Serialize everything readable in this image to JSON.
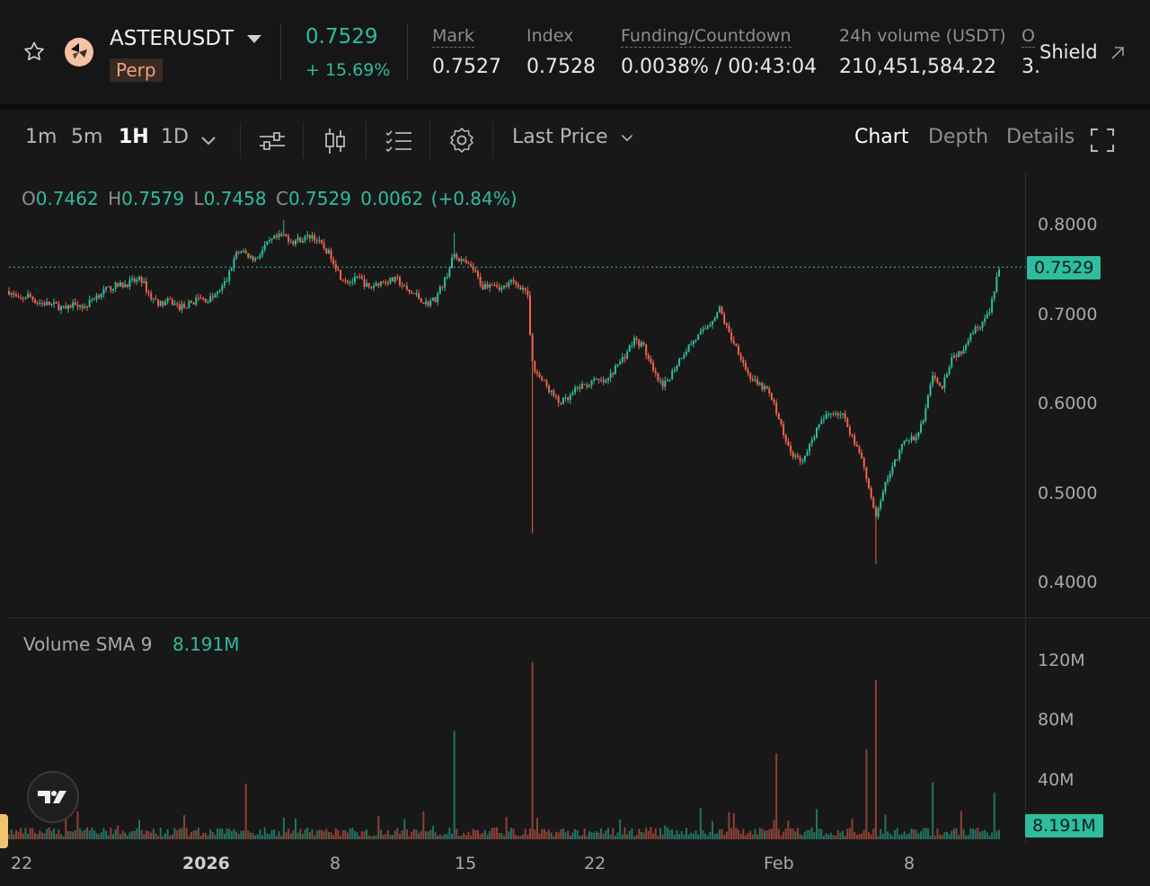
{
  "header": {
    "symbol": "ASTERUSDT",
    "contract_type": "Perp",
    "last_price": "0.7529",
    "change_pct": "+ 15.69%",
    "mark_label": "Mark",
    "mark_value": "0.7527",
    "index_label": "Index",
    "index_value": "0.7528",
    "funding_label": "Funding/Countdown",
    "funding_value": "0.0038% / 00:43:04",
    "volume_label": "24h volume (USDT)",
    "volume_value": "210,451,584.22",
    "oi_label": "O",
    "oi_value": "3.",
    "shield_label": "Shield",
    "icons": [
      "star-icon",
      "coin-logo-icon",
      "caret-down-icon",
      "arrow-up-right-icon"
    ]
  },
  "toolbar": {
    "intervals": [
      "1m",
      "5m",
      "1H",
      "1D"
    ],
    "active_interval": "1H",
    "price_type": "Last Price",
    "views": [
      "Chart",
      "Depth",
      "Details"
    ],
    "active_view": "Chart",
    "icons": [
      "chevron-down-icon",
      "indicators-icon",
      "candle-type-icon",
      "list-icon",
      "settings-icon",
      "fullscreen-icon"
    ]
  },
  "ohlc": {
    "o_label": "O",
    "o": "0.7462",
    "h_label": "H",
    "h": "0.7579",
    "l_label": "L",
    "l": "0.7458",
    "c_label": "C",
    "c": "0.7529",
    "change": "0.0062",
    "change_pct": "(+0.84%)"
  },
  "volume_panel": {
    "label": "Volume SMA 9",
    "value": "8.191M"
  },
  "colors": {
    "up": "#2ebd9e",
    "down": "#f0644d",
    "background": "#181818",
    "last_price_line": "#2ebd9e"
  },
  "chart_data": {
    "type": "candlestick",
    "interval": "1H",
    "price_axis": {
      "ticks": [
        "0.8000",
        "0.7000",
        "0.6000",
        "0.5000",
        "0.4000"
      ],
      "range": [
        0.345,
        0.855
      ],
      "last_price_label": "0.7529"
    },
    "volume_axis": {
      "ticks": [
        "120M",
        "80M",
        "40M"
      ],
      "range": [
        0,
        140
      ],
      "sma_label": "8.191M"
    },
    "x_axis": {
      "labels": [
        "22",
        "2026",
        "8",
        "15",
        "22",
        "Feb",
        "8"
      ],
      "range": [
        0,
        1000
      ]
    },
    "price_path": [
      [
        0,
        0.725
      ],
      [
        10,
        0.714
      ],
      [
        20,
        0.72
      ],
      [
        30,
        0.712
      ],
      [
        40,
        0.71
      ],
      [
        50,
        0.708
      ],
      [
        60,
        0.703
      ],
      [
        70,
        0.712
      ],
      [
        80,
        0.706
      ],
      [
        90,
        0.718
      ],
      [
        100,
        0.725
      ],
      [
        110,
        0.73
      ],
      [
        120,
        0.732
      ],
      [
        130,
        0.736
      ],
      [
        140,
        0.738
      ],
      [
        150,
        0.717
      ],
      [
        160,
        0.71
      ],
      [
        170,
        0.713
      ],
      [
        180,
        0.706
      ],
      [
        190,
        0.71
      ],
      [
        200,
        0.716
      ],
      [
        210,
        0.714
      ],
      [
        220,
        0.722
      ],
      [
        230,
        0.738
      ],
      [
        240,
        0.77
      ],
      [
        250,
        0.768
      ],
      [
        260,
        0.762
      ],
      [
        270,
        0.777
      ],
      [
        280,
        0.786
      ],
      [
        290,
        0.79
      ],
      [
        300,
        0.783
      ],
      [
        310,
        0.786
      ],
      [
        320,
        0.79
      ],
      [
        330,
        0.778
      ],
      [
        340,
        0.766
      ],
      [
        350,
        0.742
      ],
      [
        360,
        0.736
      ],
      [
        370,
        0.74
      ],
      [
        380,
        0.728
      ],
      [
        390,
        0.735
      ],
      [
        400,
        0.737
      ],
      [
        410,
        0.738
      ],
      [
        420,
        0.725
      ],
      [
        430,
        0.72
      ],
      [
        440,
        0.71
      ],
      [
        450,
        0.716
      ],
      [
        460,
        0.738
      ],
      [
        470,
        0.768
      ],
      [
        480,
        0.758
      ],
      [
        490,
        0.75
      ],
      [
        500,
        0.73
      ],
      [
        510,
        0.736
      ],
      [
        520,
        0.728
      ],
      [
        530,
        0.735
      ],
      [
        540,
        0.73
      ],
      [
        547,
        0.725
      ],
      [
        552,
        0.64
      ],
      [
        560,
        0.625
      ],
      [
        570,
        0.61
      ],
      [
        580,
        0.595
      ],
      [
        590,
        0.598
      ],
      [
        600,
        0.612
      ],
      [
        610,
        0.616
      ],
      [
        620,
        0.62
      ],
      [
        630,
        0.618
      ],
      [
        640,
        0.635
      ],
      [
        650,
        0.65
      ],
      [
        660,
        0.668
      ],
      [
        670,
        0.66
      ],
      [
        680,
        0.63
      ],
      [
        690,
        0.612
      ],
      [
        700,
        0.63
      ],
      [
        710,
        0.65
      ],
      [
        720,
        0.664
      ],
      [
        730,
        0.675
      ],
      [
        740,
        0.688
      ],
      [
        750,
        0.704
      ],
      [
        760,
        0.675
      ],
      [
        770,
        0.655
      ],
      [
        780,
        0.628
      ],
      [
        790,
        0.615
      ],
      [
        800,
        0.61
      ],
      [
        810,
        0.585
      ],
      [
        820,
        0.548
      ],
      [
        830,
        0.53
      ],
      [
        840,
        0.53
      ],
      [
        850,
        0.558
      ],
      [
        860,
        0.576
      ],
      [
        870,
        0.585
      ],
      [
        880,
        0.58
      ],
      [
        890,
        0.555
      ],
      [
        900,
        0.532
      ],
      [
        910,
        0.48
      ],
      [
        915,
        0.458
      ],
      [
        925,
        0.5
      ],
      [
        935,
        0.525
      ],
      [
        945,
        0.55
      ],
      [
        955,
        0.552
      ],
      [
        965,
        0.575
      ],
      [
        975,
        0.625
      ],
      [
        985,
        0.615
      ],
      [
        995,
        0.648
      ],
      [
        1005,
        0.655
      ],
      [
        1015,
        0.676
      ],
      [
        1025,
        0.686
      ],
      [
        1035,
        0.7
      ],
      [
        1040,
        0.725
      ],
      [
        1045,
        0.7529
      ]
    ],
    "wick_events": [
      {
        "x": 552,
        "low": 0.442
      },
      {
        "x": 915,
        "low": 0.406
      },
      {
        "x": 470,
        "high": 0.793
      },
      {
        "x": 290,
        "high": 0.808
      }
    ],
    "volume_spikes": [
      {
        "x": 60,
        "value": 22
      },
      {
        "x": 250,
        "value": 37
      },
      {
        "x": 470,
        "value": 72
      },
      {
        "x": 552,
        "value": 118
      },
      {
        "x": 810,
        "value": 57
      },
      {
        "x": 905,
        "value": 60
      },
      {
        "x": 915,
        "value": 106
      },
      {
        "x": 975,
        "value": 38
      },
      {
        "x": 1040,
        "value": 31
      }
    ]
  }
}
